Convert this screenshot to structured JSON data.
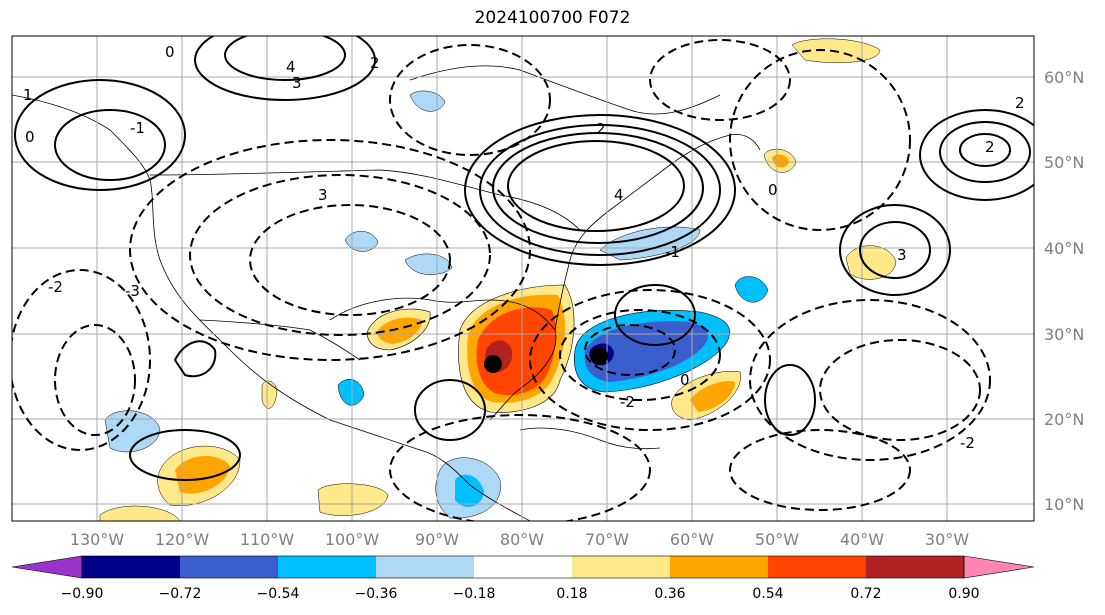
{
  "title": "2024100700 F072",
  "lat_labels": [
    "60°N",
    "50°N",
    "40°N",
    "30°N",
    "20°N",
    "10°N"
  ],
  "lon_labels": [
    "130°W",
    "120°W",
    "110°W",
    "100°W",
    "90°W",
    "80°W",
    "70°W",
    "60°W",
    "50°W",
    "40°W",
    "30°W"
  ],
  "colorbar": {
    "levels": [
      "−0.90",
      "−0.72",
      "−0.54",
      "−0.36",
      "−0.18",
      "0.18",
      "0.36",
      "0.54",
      "0.72",
      "0.90"
    ],
    "colors": [
      "#9933cc",
      "#00008b",
      "#3a5fcd",
      "#00bfff",
      "#add8f6",
      "#ffffff",
      "#ffe88a",
      "#ffa500",
      "#ff4500",
      "#b22222",
      "#ff85b3"
    ]
  },
  "contour_labels": [
    "0",
    "4",
    "3",
    "2",
    "1",
    "0",
    "-1",
    "-2",
    "-3",
    "3",
    "2",
    "4",
    "0",
    "2",
    "3",
    "-2",
    "-1",
    "0",
    "2",
    "-2"
  ],
  "marker_colors": {
    "positive_center": "#000000",
    "negative_center": "#000000"
  }
}
